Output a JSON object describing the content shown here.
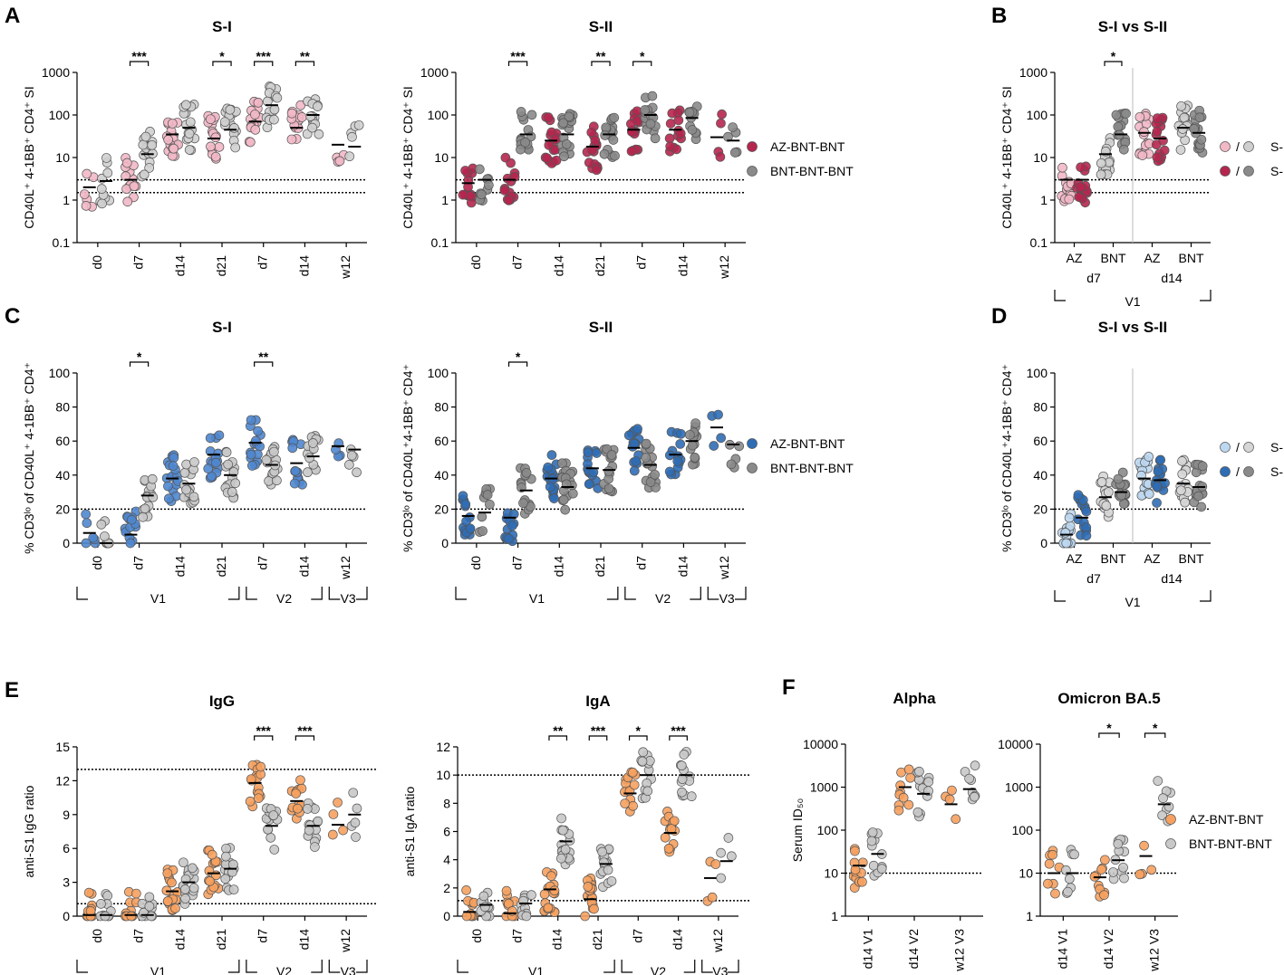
{
  "chart_data": [
    {
      "id": "A-S-I",
      "type": "scatter",
      "panel_label": "A",
      "title": "S-I",
      "ylabel": "CD40L⁺ 4-1BB⁺ CD4⁺ SI",
      "scale": "log",
      "ylim": [
        0.1,
        1000
      ],
      "yticks": [
        0.1,
        1,
        10,
        100,
        1000
      ],
      "ytick_labels": [
        "0.1",
        "1",
        "10",
        "100",
        "1000"
      ],
      "categories": [
        "d0",
        "d7",
        "d14",
        "d21",
        "d7",
        "d14",
        "w12"
      ],
      "reference_lines": [
        3,
        1.5
      ],
      "series": [
        {
          "name": "AZ-BNT-BNT",
          "color": "#f2b8c6",
          "medians": [
            2,
            3,
            35,
            28,
            70,
            50,
            20
          ],
          "sample_counts": [
            6,
            14,
            18,
            16,
            16,
            14,
            4
          ]
        },
        {
          "name": "BNT-BNT-BNT",
          "color": "#cfcfcf",
          "medians": [
            2.8,
            12,
            50,
            45,
            170,
            100,
            18
          ],
          "sample_counts": [
            10,
            16,
            18,
            16,
            16,
            14,
            5
          ]
        }
      ],
      "significance": [
        {
          "group": 1,
          "label": "***"
        },
        {
          "group": 3,
          "label": "*"
        },
        {
          "group": 4,
          "label": "***"
        },
        {
          "group": 5,
          "label": "**"
        }
      ]
    },
    {
      "id": "A-S-II",
      "type": "scatter",
      "title": "S-II",
      "ylabel": "CD40L⁺ 4-1BB⁺ CD4⁺ SI",
      "scale": "log",
      "ylim": [
        0.1,
        1000
      ],
      "yticks": [
        0.1,
        1,
        10,
        100,
        1000
      ],
      "ytick_labels": [
        "0.1",
        "1",
        "10",
        "100",
        "1000"
      ],
      "categories": [
        "d0",
        "d7",
        "d14",
        "d21",
        "d7",
        "d14",
        "w12"
      ],
      "reference_lines": [
        3,
        1.5
      ],
      "series": [
        {
          "name": "AZ-BNT-BNT",
          "color": "#b5264e",
          "medians": [
            2.5,
            3,
            25,
            18,
            45,
            45,
            30
          ],
          "sample_counts": [
            14,
            14,
            18,
            16,
            16,
            14,
            4
          ]
        },
        {
          "name": "BNT-BNT-BNT",
          "color": "#8a8a8a",
          "medians": [
            3,
            35,
            35,
            35,
            100,
            85,
            25
          ],
          "sample_counts": [
            10,
            16,
            18,
            16,
            16,
            14,
            5
          ]
        }
      ],
      "significance": [
        {
          "group": 1,
          "label": "***"
        },
        {
          "group": 3,
          "label": "**"
        },
        {
          "group": 4,
          "label": "*"
        }
      ]
    },
    {
      "id": "B",
      "type": "scatter",
      "panel_label": "B",
      "title": "S-I vs S-II",
      "ylabel": "CD40L⁺ 4-1BB⁺ CD4⁺ SI",
      "scale": "log",
      "ylim": [
        0.1,
        1000
      ],
      "yticks": [
        0.1,
        1,
        10,
        100,
        1000
      ],
      "ytick_labels": [
        "0.1",
        "1",
        "10",
        "100",
        "1000"
      ],
      "categories": [
        "AZ",
        "BNT",
        "AZ",
        "BNT"
      ],
      "reference_lines": [
        3,
        1.5
      ],
      "group_medians": [
        [
          3,
          3
        ],
        [
          12,
          35
        ],
        [
          38,
          28
        ],
        [
          50,
          38
        ]
      ],
      "significance": [
        {
          "group": 1,
          "label": "*"
        }
      ]
    },
    {
      "id": "C-S-I",
      "type": "scatter",
      "panel_label": "C",
      "title": "S-I",
      "ylabel": "% CD3ˡᵒ of CD40L⁺ 4-1BB⁺ CD4⁺",
      "scale": "linear",
      "ylim": [
        0,
        100
      ],
      "yticks": [
        0,
        20,
        40,
        60,
        80,
        100
      ],
      "ytick_labels": [
        "0",
        "20",
        "40",
        "60",
        "80",
        "100"
      ],
      "categories": [
        "d0",
        "d7",
        "d14",
        "d21",
        "d7",
        "d14",
        "w12"
      ],
      "reference_lines": [
        20
      ],
      "series": [
        {
          "name": "AZ-BNT-BNT",
          "color": "#4f87cf",
          "medians": [
            6,
            5,
            38,
            52,
            59,
            47,
            57
          ],
          "sample_counts": [
            6,
            14,
            18,
            16,
            16,
            14,
            4
          ]
        },
        {
          "name": "BNT-BNT-BNT",
          "color": "#c8c8c8",
          "medians": [
            0,
            28,
            35,
            40,
            46,
            51,
            55
          ],
          "sample_counts": [
            8,
            16,
            18,
            16,
            16,
            14,
            5
          ]
        }
      ],
      "significance": [
        {
          "group": 1,
          "label": "*"
        },
        {
          "group": 4,
          "label": "**"
        }
      ]
    },
    {
      "id": "C-S-II",
      "type": "scatter",
      "title": "S-II",
      "ylabel": "% CD3ˡᵒ of CD40L⁺4-1BB⁺ CD4⁺",
      "scale": "linear",
      "ylim": [
        0,
        100
      ],
      "yticks": [
        0,
        20,
        40,
        60,
        80,
        100
      ],
      "ytick_labels": [
        "0",
        "20",
        "40",
        "60",
        "80",
        "100"
      ],
      "categories": [
        "d0",
        "d7",
        "d14",
        "d21",
        "d7",
        "d14",
        "w12"
      ],
      "reference_lines": [
        20
      ],
      "series": [
        {
          "name": "AZ-BNT-BNT",
          "color": "#2f6db5",
          "medians": [
            16,
            15,
            38,
            44,
            56,
            52,
            68
          ],
          "sample_counts": [
            14,
            14,
            18,
            16,
            16,
            14,
            4
          ]
        },
        {
          "name": "BNT-BNT-BNT",
          "color": "#8a8a8a",
          "medians": [
            18,
            31,
            33,
            43,
            46,
            60,
            58
          ],
          "sample_counts": [
            10,
            16,
            18,
            16,
            16,
            14,
            5
          ]
        }
      ],
      "significance": [
        {
          "group": 1,
          "label": "*"
        }
      ]
    },
    {
      "id": "D",
      "type": "scatter",
      "panel_label": "D",
      "title": "S-I vs S-II",
      "ylabel": "% CD3ˡᵒ of CD40L⁺4-1BB⁺ CD4⁺",
      "scale": "linear",
      "ylim": [
        0,
        100
      ],
      "yticks": [
        0,
        20,
        40,
        60,
        80,
        100
      ],
      "ytick_labels": [
        "0",
        "20",
        "40",
        "60",
        "80",
        "100"
      ],
      "categories": [
        "AZ",
        "BNT",
        "AZ",
        "BNT"
      ],
      "reference_lines": [
        20
      ],
      "group_medians": [
        [
          5,
          15
        ],
        [
          27,
          30
        ],
        [
          38,
          37
        ],
        [
          35,
          33
        ]
      ],
      "significance": []
    },
    {
      "id": "E-IgG",
      "type": "scatter",
      "panel_label": "E",
      "title": "IgG",
      "ylabel": "anti-S1 IgG ratio",
      "scale": "linear",
      "ylim": [
        0,
        15
      ],
      "yticks": [
        0,
        3,
        6,
        9,
        12,
        15
      ],
      "ytick_labels": [
        "0",
        "3",
        "6",
        "9",
        "12",
        "15"
      ],
      "categories": [
        "d0",
        "d7",
        "d14",
        "d21",
        "d7",
        "d14",
        "w12"
      ],
      "reference_lines": [
        13,
        1.1
      ],
      "series": [
        {
          "name": "AZ-BNT-BNT",
          "color": "#f6a15f",
          "medians": [
            0.1,
            0.1,
            2.2,
            3.8,
            11.8,
            10.2,
            8.1
          ],
          "sample_counts": [
            10,
            10,
            18,
            16,
            16,
            14,
            4
          ]
        },
        {
          "name": "BNT-BNT-BNT",
          "color": "#c8c8c8",
          "medians": [
            0.1,
            0.1,
            3.0,
            4.2,
            8.0,
            8.0,
            9.0
          ],
          "sample_counts": [
            10,
            10,
            18,
            16,
            16,
            14,
            5
          ]
        }
      ],
      "significance": [
        {
          "group": 4,
          "label": "***"
        },
        {
          "group": 5,
          "label": "***"
        }
      ]
    },
    {
      "id": "E-IgA",
      "type": "scatter",
      "title": "IgA",
      "ylabel": "anti-S1 IgA ratio",
      "scale": "linear",
      "ylim": [
        0,
        12
      ],
      "yticks": [
        0,
        2,
        4,
        6,
        8,
        10,
        12
      ],
      "ytick_labels": [
        "0",
        "2",
        "4",
        "6",
        "8",
        "10",
        "12"
      ],
      "categories": [
        "d0",
        "d7",
        "d14",
        "d21",
        "d7",
        "d14",
        "w12"
      ],
      "reference_lines": [
        10,
        1.1
      ],
      "series": [
        {
          "name": "AZ-BNT-BNT",
          "color": "#f6a15f",
          "medians": [
            0.3,
            0.2,
            1.9,
            1.2,
            8.7,
            5.9,
            2.7
          ],
          "sample_counts": [
            10,
            10,
            18,
            16,
            14,
            14,
            4
          ]
        },
        {
          "name": "BNT-BNT-BNT",
          "color": "#c8c8c8",
          "medians": [
            0.8,
            0.9,
            5.3,
            3.7,
            10,
            10,
            3.9
          ],
          "sample_counts": [
            10,
            10,
            18,
            16,
            14,
            14,
            4
          ]
        }
      ],
      "significance": [
        {
          "group": 2,
          "label": "**"
        },
        {
          "group": 3,
          "label": "***"
        },
        {
          "group": 4,
          "label": "*"
        },
        {
          "group": 5,
          "label": "***"
        }
      ]
    },
    {
      "id": "F-Alpha",
      "type": "scatter",
      "panel_label": "F",
      "title": "Alpha",
      "ylabel": "Serum ID₅₀",
      "scale": "log",
      "ylim": [
        1,
        10000
      ],
      "yticks": [
        1,
        10,
        100,
        1000,
        10000
      ],
      "ytick_labels": [
        "1",
        "10",
        "100",
        "1000",
        "10000"
      ],
      "categories": [
        "d14 V1",
        "d14 V2",
        "w12 V3"
      ],
      "reference_lines": [
        10
      ],
      "series": [
        {
          "name": "AZ-BNT-BNT",
          "color": "#f6a15f",
          "medians": [
            15,
            1000,
            400
          ],
          "sample_counts": [
            12,
            10,
            4
          ]
        },
        {
          "name": "BNT-BNT-BNT",
          "color": "#c8c8c8",
          "medians": [
            28,
            700,
            900
          ],
          "sample_counts": [
            12,
            12,
            8
          ]
        }
      ],
      "significance": []
    },
    {
      "id": "F-Omicron",
      "type": "scatter",
      "title": "Omicron BA.5",
      "ylabel": "",
      "scale": "log",
      "ylim": [
        1,
        10000
      ],
      "yticks": [
        1,
        10,
        100,
        1000,
        10000
      ],
      "ytick_labels": [
        "1",
        "10",
        "100",
        "1000",
        "10000"
      ],
      "categories": [
        "d14 V1",
        "d14 V2",
        "w12 V3"
      ],
      "reference_lines": [
        10
      ],
      "series": [
        {
          "name": "AZ-BNT-BNT",
          "color": "#f6a15f",
          "medians": [
            10,
            8,
            25
          ],
          "sample_counts": [
            8,
            10,
            4
          ]
        },
        {
          "name": "BNT-BNT-BNT",
          "color": "#c8c8c8",
          "medians": [
            10,
            20,
            400
          ],
          "sample_counts": [
            8,
            12,
            8
          ]
        }
      ],
      "significance": [
        {
          "group": 1,
          "label": "*"
        },
        {
          "group": 2,
          "label": "*"
        }
      ]
    }
  ],
  "phase_labels": {
    "V1": "V1",
    "V2": "V2",
    "V3": "V3",
    "d7": "d7",
    "d14": "d14"
  },
  "legends": {
    "A": [
      {
        "label": "AZ-BNT-BNT",
        "color": "#b5264e"
      },
      {
        "label": "BNT-BNT-BNT",
        "color": "#8a8a8a"
      }
    ],
    "B": [
      {
        "label": "S-I",
        "colors": [
          "#f2b8c6",
          "#cfcfcf"
        ]
      },
      {
        "label": "S-II",
        "colors": [
          "#b5264e",
          "#8a8a8a"
        ]
      }
    ],
    "C": [
      {
        "label": "AZ-BNT-BNT",
        "color": "#2f6db5"
      },
      {
        "label": "BNT-BNT-BNT",
        "color": "#8a8a8a"
      }
    ],
    "D": [
      {
        "label": "S-I",
        "colors": [
          "#bcd7f0",
          "#d6d6d6"
        ]
      },
      {
        "label": "S-II",
        "colors": [
          "#2f6db5",
          "#8a8a8a"
        ]
      }
    ],
    "F": [
      {
        "label": "AZ-BNT-BNT",
        "color": "#f6a15f"
      },
      {
        "label": "BNT-BNT-BNT",
        "color": "#c8c8c8"
      }
    ]
  }
}
